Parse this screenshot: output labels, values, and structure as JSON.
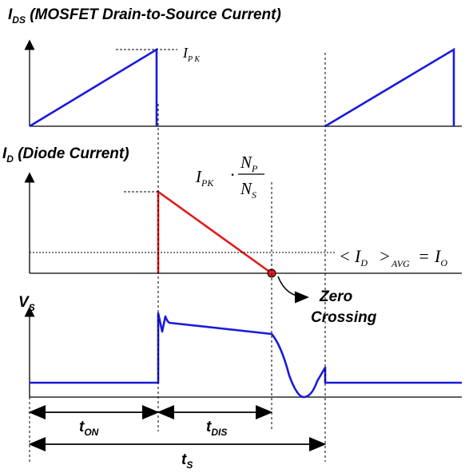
{
  "headings": {
    "ids_main": "I",
    "ids_sub": "DS",
    "ids_desc": " (MOSFET Drain-to-Source Current)",
    "id_main": "I",
    "id_sub": "D",
    "id_desc": " (Diode Current)",
    "vs_main": "V",
    "vs_sub": "S"
  },
  "annotations": {
    "ipk_main": "I",
    "ipk_sub": "P K",
    "ratio_main": "I",
    "ratio_sub": "PK",
    "ratio_dot": "·",
    "np_main": "N",
    "np_sub": "P",
    "ns_main": "N",
    "ns_sub": "S",
    "avg_open": "<",
    "avg_i": "I",
    "avg_i_sub": "D",
    "avg_close": ">",
    "avg_sub": "AVG",
    "avg_eq": "=",
    "avg_io": "I",
    "avg_io_sub": "O",
    "zero": "Zero",
    "crossing": "Crossing"
  },
  "timing": {
    "ton_main": "t",
    "ton_sub": "ON",
    "tdis_main": "t",
    "tdis_sub": "DIS",
    "ts_main": "t",
    "ts_sub": "S"
  },
  "colors": {
    "mosfet_current": "#1a1adb",
    "diode_current": "#e01a1a",
    "voltage": "#1a1adb",
    "zero_point": "#e01a1a",
    "axes": "#000000"
  }
}
